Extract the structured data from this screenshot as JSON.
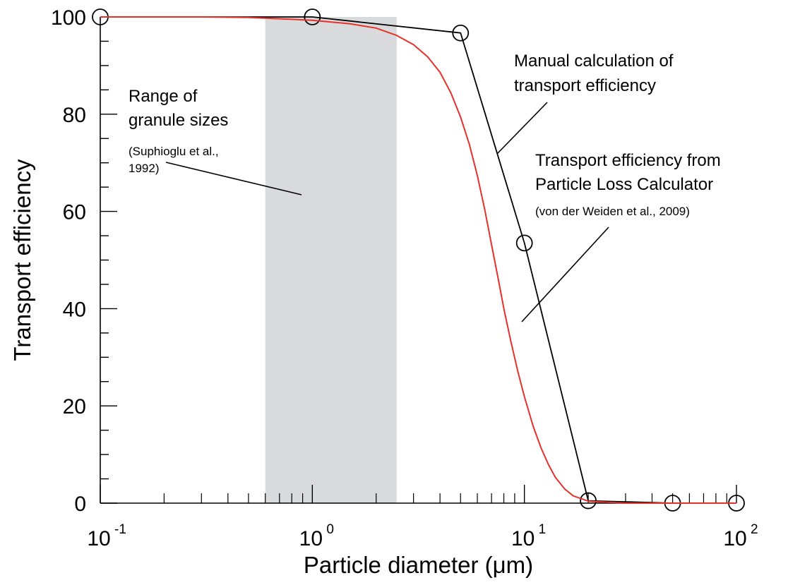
{
  "chart_data": {
    "type": "line",
    "title": "",
    "xlabel": "Particle diameter (μm)",
    "ylabel": "Transport efficiency",
    "x_scale": "log",
    "xlim": [
      0.1,
      100
    ],
    "ylim": [
      0,
      100
    ],
    "x_ticks": [
      {
        "value": 0.1,
        "base": "10",
        "exp": "-1"
      },
      {
        "value": 1,
        "base": "10",
        "exp": "0"
      },
      {
        "value": 10,
        "base": "10",
        "exp": "1"
      },
      {
        "value": 100,
        "base": "10",
        "exp": "2"
      }
    ],
    "y_ticks": [
      0,
      20,
      40,
      60,
      80,
      100
    ],
    "grid": false,
    "shaded_region": {
      "x_range": [
        0.6,
        2.5
      ],
      "color": "#d9dadc"
    },
    "series": [
      {
        "key": "manual",
        "color": "#000000",
        "marker": "circle",
        "points": [
          {
            "x": 0.1,
            "y": 100
          },
          {
            "x": 1,
            "y": 100
          },
          {
            "x": 5,
            "y": 96.7
          },
          {
            "x": 10,
            "y": 53.5
          },
          {
            "x": 20,
            "y": 0.5
          },
          {
            "x": 50,
            "y": 0
          },
          {
            "x": 100,
            "y": 0
          }
        ]
      },
      {
        "key": "calculator",
        "color": "#e8312a",
        "marker": "none",
        "points": [
          {
            "x": 0.1,
            "y": 100
          },
          {
            "x": 0.3,
            "y": 100
          },
          {
            "x": 0.5,
            "y": 99.9
          },
          {
            "x": 0.8,
            "y": 99.5
          },
          {
            "x": 1,
            "y": 99.3
          },
          {
            "x": 1.5,
            "y": 98.6
          },
          {
            "x": 2,
            "y": 97.7
          },
          {
            "x": 2.5,
            "y": 96.2
          },
          {
            "x": 3,
            "y": 94.3
          },
          {
            "x": 3.5,
            "y": 91.8
          },
          {
            "x": 4,
            "y": 88.6
          },
          {
            "x": 4.5,
            "y": 84.4
          },
          {
            "x": 5,
            "y": 79.4
          },
          {
            "x": 5.5,
            "y": 73.8
          },
          {
            "x": 6,
            "y": 67.4
          },
          {
            "x": 6.5,
            "y": 60.4
          },
          {
            "x": 7,
            "y": 53.2
          },
          {
            "x": 7.5,
            "y": 46.5
          },
          {
            "x": 8,
            "y": 40.0
          },
          {
            "x": 8.6,
            "y": 33.6
          },
          {
            "x": 9.3,
            "y": 27.2
          },
          {
            "x": 10,
            "y": 21.9
          },
          {
            "x": 11,
            "y": 15.8
          },
          {
            "x": 12,
            "y": 11.3
          },
          {
            "x": 13,
            "y": 7.9
          },
          {
            "x": 14,
            "y": 5.3
          },
          {
            "x": 15.5,
            "y": 2.9
          },
          {
            "x": 17,
            "y": 1.5
          },
          {
            "x": 20,
            "y": 0.4
          },
          {
            "x": 30,
            "y": 0
          },
          {
            "x": 100,
            "y": 0
          }
        ]
      }
    ],
    "annotations": [
      {
        "key": "granule",
        "lines": [
          "Range of",
          "granule sizes"
        ],
        "small_lines": [
          "(Suphioglu et al.,",
          "1992)"
        ]
      },
      {
        "key": "manual",
        "lines": [
          "Manual calculation of",
          "transport efficiency"
        ],
        "small_lines": []
      },
      {
        "key": "calculator",
        "lines": [
          "Transport efficiency from",
          "Particle Loss Calculator"
        ],
        "small_lines": [
          "(von der Weiden et al., 2009)"
        ]
      }
    ]
  }
}
